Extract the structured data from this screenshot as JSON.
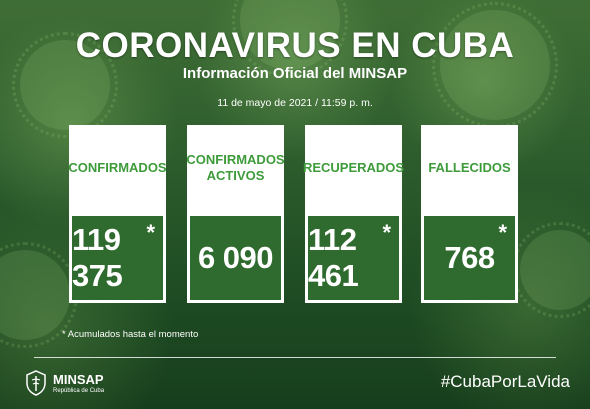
{
  "header": {
    "title": "CORONAVIRUS EN CUBA",
    "subtitle": "Información Oficial del MINSAP",
    "date": "11 de mayo de 2021 / 11:59 p. m."
  },
  "cards": [
    {
      "label": "CONFIRMADOS",
      "value": "119 375",
      "asterisk": "*"
    },
    {
      "label": "CONFIRMADOS ACTIVOS",
      "value": "6 090",
      "asterisk": ""
    },
    {
      "label": "RECUPERADOS",
      "value": "112 461",
      "asterisk": "*"
    },
    {
      "label": "FALLECIDOS",
      "value": "768",
      "asterisk": "*"
    }
  ],
  "note": "* Acumulados hasta el momento",
  "footer": {
    "logo_name": "MINSAP",
    "logo_sub": "República de Cuba",
    "hashtag": "#CubaPorLaVida"
  },
  "colors": {
    "accent_green": "#3d9b3a",
    "value_box_green": "#2f6a2f"
  }
}
